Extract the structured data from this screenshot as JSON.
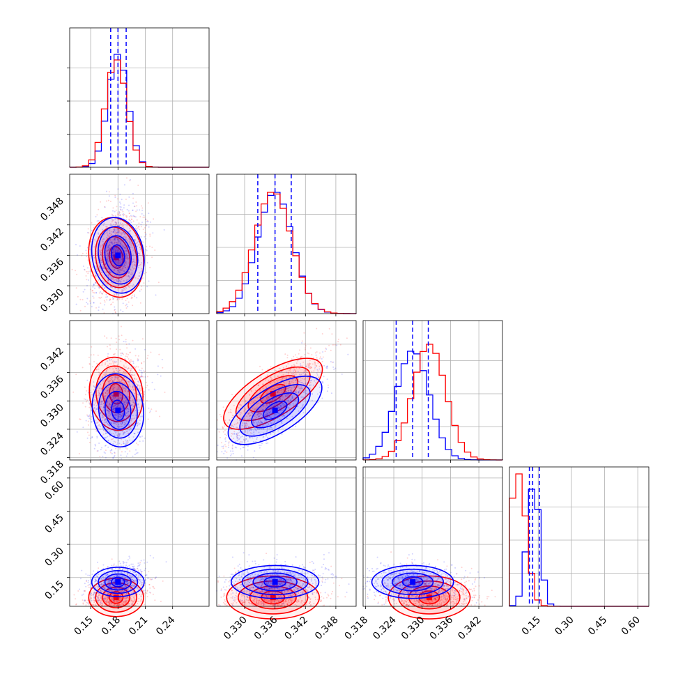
{
  "colors": {
    "series_a": "#0000ff",
    "series_b": "#ff0000",
    "grid": "#b0b0b0"
  },
  "chart_data": {
    "type": "corner",
    "parameters": [
      {
        "range": [
          0.127,
          0.28
        ],
        "ticks": [
          0.15,
          0.18,
          0.21,
          0.24
        ],
        "tick_labels": [
          "0.15",
          "0.18",
          "0.21",
          "0.24"
        ]
      },
      {
        "range": [
          0.3245,
          0.352
        ],
        "ticks": [
          0.33,
          0.336,
          0.342,
          0.348
        ],
        "tick_labels": [
          "0.330",
          "0.336",
          "0.342",
          "0.348"
        ]
      },
      {
        "range": [
          0.3175,
          0.347
        ],
        "ticks": [
          0.318,
          0.324,
          0.33,
          0.336,
          0.342
        ],
        "tick_labels": [
          "0.318",
          "0.324",
          "0.330",
          "0.336",
          "0.342"
        ]
      },
      {
        "range": [
          0.02,
          0.65
        ],
        "ticks": [
          0.15,
          0.3,
          0.45,
          0.6
        ],
        "tick_labels": [
          "0.15",
          "0.30",
          "0.45",
          "0.60"
        ]
      }
    ],
    "series": [
      {
        "color": "#0000ff",
        "mean": [
          0.18,
          0.336,
          0.328,
          0.13
        ],
        "sd": [
          0.011,
          0.0035,
          0.0035,
          0.03
        ],
        "quantile_lines": [
          [
            0.172,
            0.18,
            0.189
          ],
          [
            0.3326,
            0.336,
            0.3392
          ],
          [
            0.3245,
            0.328,
            0.3313
          ],
          [
            0.11,
            0.125,
            0.155
          ]
        ],
        "hist_peak": [
          0.81,
          0.87,
          0.78,
          0.84
        ]
      },
      {
        "color": "#ff0000",
        "mean": [
          0.178,
          0.3356,
          0.3315,
          0.06
        ],
        "sd": [
          0.0115,
          0.0037,
          0.0035,
          0.04
        ],
        "hist_peak": [
          0.77,
          0.87,
          0.83,
          0.95
        ]
      }
    ]
  }
}
